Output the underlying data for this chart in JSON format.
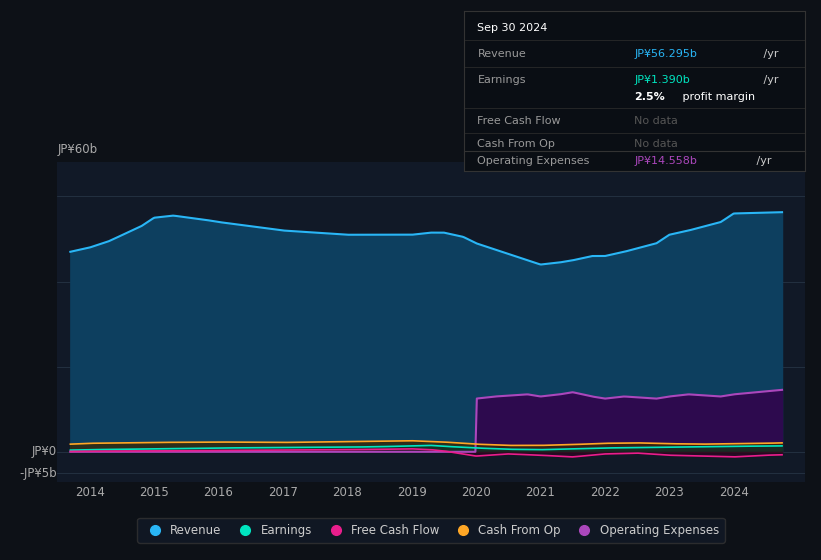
{
  "bg_color": "#0d1117",
  "plot_bg_color": "#111927",
  "revenue_color": "#29b6f6",
  "earnings_color": "#00e5c0",
  "fcf_color": "#e91e8c",
  "cashop_color": "#ffa726",
  "opex_color": "#ab47bc",
  "revenue_fill": "#0d3f5f",
  "opex_fill": "#2d0a4e",
  "info_box": {
    "date": "Sep 30 2024",
    "revenue_label": "Revenue",
    "revenue_val": "JP¥56.295b",
    "revenue_unit": " /yr",
    "earnings_label": "Earnings",
    "earnings_val": "JP¥1.390b",
    "earnings_unit": " /yr",
    "margin_bold": "2.5%",
    "margin_rest": " profit margin",
    "fcf_label": "Free Cash Flow",
    "fcf_val": "No data",
    "cashop_label": "Cash From Op",
    "cashop_val": "No data",
    "opex_label": "Operating Expenses",
    "opex_val": "JP¥14.558b",
    "opex_unit": " /yr"
  },
  "legend_items": [
    "Revenue",
    "Earnings",
    "Free Cash Flow",
    "Cash From Op",
    "Operating Expenses"
  ],
  "legend_colors": [
    "#29b6f6",
    "#00e5c0",
    "#e91e8c",
    "#ffa726",
    "#ab47bc"
  ],
  "rev_x": [
    2013.7,
    2014.0,
    2014.3,
    2014.8,
    2015.0,
    2015.3,
    2015.8,
    2016.0,
    2016.5,
    2017.0,
    2017.5,
    2018.0,
    2018.5,
    2019.0,
    2019.3,
    2019.5,
    2019.8,
    2020.0,
    2020.3,
    2020.8,
    2021.0,
    2021.3,
    2021.5,
    2021.8,
    2022.0,
    2022.3,
    2022.8,
    2023.0,
    2023.3,
    2023.8,
    2024.0,
    2024.5,
    2024.75
  ],
  "rev_y": [
    47,
    48,
    49.5,
    53,
    55,
    55.5,
    54.5,
    54,
    53,
    52,
    51.5,
    51,
    51,
    51,
    51.5,
    51.5,
    50.5,
    49,
    47.5,
    45,
    44,
    44.5,
    45,
    46,
    46,
    47,
    49,
    51,
    52,
    54,
    56,
    56.2,
    56.3
  ],
  "earn_x": [
    2013.7,
    2014.0,
    2015.0,
    2016.0,
    2017.0,
    2018.0,
    2018.5,
    2019.0,
    2019.3,
    2019.5,
    2020.0,
    2020.5,
    2021.0,
    2021.5,
    2022.0,
    2022.5,
    2023.0,
    2023.5,
    2024.0,
    2024.5,
    2024.75
  ],
  "earn_y": [
    0.4,
    0.5,
    0.7,
    0.9,
    1.0,
    1.1,
    1.2,
    1.4,
    1.5,
    1.3,
    0.9,
    0.6,
    0.5,
    0.7,
    0.9,
    1.0,
    1.1,
    1.2,
    1.3,
    1.35,
    1.39
  ],
  "fcf_x": [
    2013.7,
    2014.0,
    2015.0,
    2016.0,
    2017.0,
    2018.0,
    2019.0,
    2019.3,
    2019.5,
    2020.0,
    2020.5,
    2021.0,
    2021.5,
    2022.0,
    2022.5,
    2023.0,
    2023.5,
    2024.0,
    2024.5,
    2024.75
  ],
  "fcf_y": [
    0.1,
    0.15,
    0.2,
    0.3,
    0.4,
    0.5,
    0.7,
    0.5,
    0.2,
    -1.0,
    -0.5,
    -0.8,
    -1.2,
    -0.5,
    -0.3,
    -0.8,
    -1.0,
    -1.2,
    -0.8,
    -0.7
  ],
  "cashop_x": [
    2013.7,
    2014.0,
    2015.0,
    2016.0,
    2017.0,
    2018.0,
    2018.5,
    2019.0,
    2019.5,
    2020.0,
    2020.5,
    2021.0,
    2021.5,
    2022.0,
    2022.5,
    2023.0,
    2023.5,
    2024.0,
    2024.5,
    2024.75
  ],
  "cashop_y": [
    1.8,
    2.0,
    2.2,
    2.3,
    2.2,
    2.4,
    2.5,
    2.6,
    2.3,
    1.8,
    1.5,
    1.5,
    1.7,
    2.0,
    2.1,
    1.9,
    1.8,
    1.9,
    2.0,
    2.1
  ],
  "opex_x": [
    2013.7,
    2019.7,
    2019.99,
    2020.0,
    2020.3,
    2020.8,
    2021.0,
    2021.3,
    2021.5,
    2021.8,
    2022.0,
    2022.3,
    2022.8,
    2023.0,
    2023.3,
    2023.8,
    2024.0,
    2024.5,
    2024.75
  ],
  "opex_y": [
    0,
    0,
    0,
    12.5,
    13.0,
    13.5,
    13.0,
    13.5,
    14.0,
    13.0,
    12.5,
    13.0,
    12.5,
    13.0,
    13.5,
    13.0,
    13.5,
    14.2,
    14.558
  ]
}
